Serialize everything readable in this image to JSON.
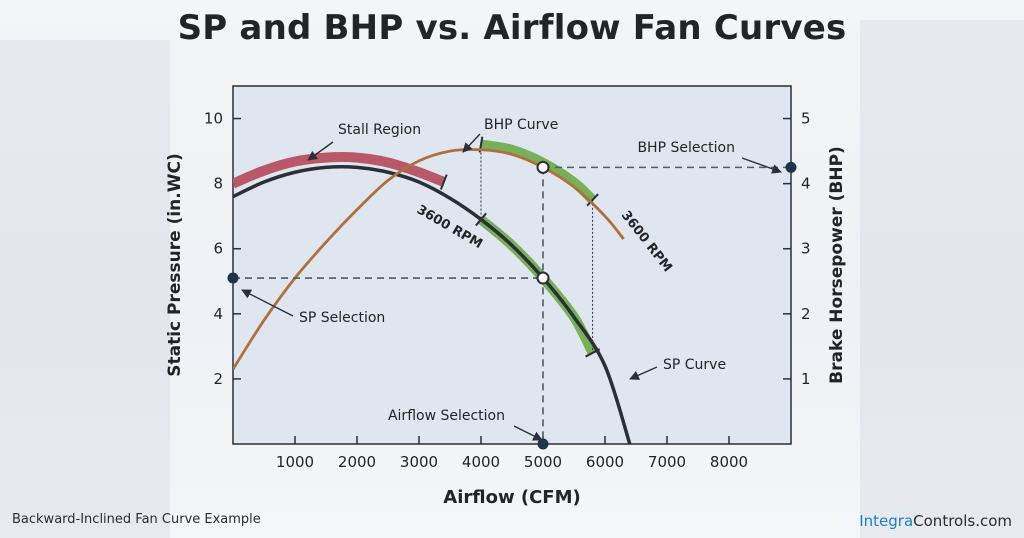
{
  "title": "SP and BHP vs. Airflow Fan Curves",
  "caption": "Backward-Inclined Fan Curve Example",
  "brand": {
    "part1": "Integra",
    "part2": "Controls.com",
    "accent_color": "#1f7fc0"
  },
  "chart_data": {
    "type": "line",
    "xlabel": "Airflow (CFM)",
    "ylabel": "Static Pressure (in.WC)",
    "y2label": "Brake Horsepower (BHP)",
    "xlim": [
      0,
      9000
    ],
    "ylim": [
      0,
      11
    ],
    "y2lim": [
      0,
      5.5
    ],
    "xticks": [
      1000,
      2000,
      3000,
      4000,
      5000,
      6000,
      7000,
      8000
    ],
    "yticks": [
      2,
      4,
      6,
      8,
      10
    ],
    "y2ticks": [
      1,
      2,
      3,
      4,
      5
    ],
    "grid": false,
    "series": [
      {
        "name": "SP Curve",
        "axis": "left",
        "color": "#2b2f36",
        "x": [
          0,
          500,
          1000,
          1500,
          2000,
          2500,
          3000,
          3500,
          4000,
          4500,
          5000,
          5500,
          6000,
          6400
        ],
        "y": [
          7.6,
          8.05,
          8.35,
          8.5,
          8.5,
          8.35,
          8.05,
          7.55,
          6.9,
          6.1,
          5.1,
          3.9,
          2.4,
          0
        ]
      },
      {
        "name": "BHP Curve",
        "axis": "right",
        "color": "#b0703e",
        "x": [
          0,
          500,
          1000,
          1500,
          2000,
          2500,
          3000,
          3500,
          4000,
          4500,
          5000,
          5500,
          6000,
          6300
        ],
        "y": [
          1.15,
          1.9,
          2.55,
          3.1,
          3.6,
          4.05,
          4.35,
          4.5,
          4.52,
          4.45,
          4.25,
          3.95,
          3.5,
          3.15
        ]
      }
    ],
    "highlights": [
      {
        "label": "Stall Region",
        "axis": "left",
        "color": "#b85868",
        "x": [
          0,
          500,
          1000,
          1500,
          2000,
          2500,
          3000,
          3400
        ],
        "y": [
          8.0,
          8.4,
          8.68,
          8.8,
          8.8,
          8.65,
          8.35,
          8.05
        ]
      },
      {
        "axis": "left",
        "color": "#78b05a",
        "x": [
          4000,
          4500,
          5000,
          5500,
          5800
        ],
        "y": [
          6.9,
          6.1,
          5.1,
          3.9,
          2.8
        ]
      },
      {
        "axis": "right",
        "color": "#78b05a",
        "x": [
          4000,
          4500,
          5000,
          5500,
          5800
        ],
        "y": [
          4.6,
          4.52,
          4.32,
          4.02,
          3.75
        ]
      }
    ],
    "selections": {
      "airflow": 5000,
      "sp": 5.1,
      "bhp": 4.25
    },
    "annotations": [
      {
        "text": "Stall Region"
      },
      {
        "text": "BHP Curve"
      },
      {
        "text": "BHP Selection"
      },
      {
        "text": "SP Selection"
      },
      {
        "text": "SP Curve"
      },
      {
        "text": "Airflow Selection"
      },
      {
        "text": "3600 RPM"
      },
      {
        "text": "3600 RPM"
      }
    ],
    "plot_bg": "#dfe6ef"
  }
}
